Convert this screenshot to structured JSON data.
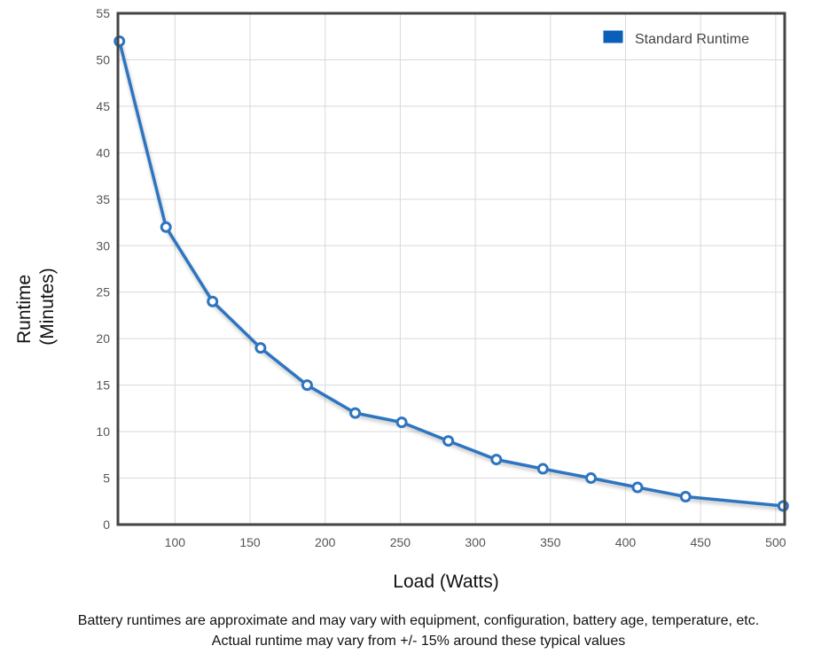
{
  "chart_data": {
    "type": "line",
    "title": "",
    "xlabel": "Load (Watts)",
    "ylabel": [
      "Runtime",
      "(Minutes)"
    ],
    "xlim": [
      62,
      506
    ],
    "ylim": [
      0,
      55
    ],
    "xticks": [
      100,
      150,
      200,
      250,
      300,
      350,
      400,
      450,
      500
    ],
    "yticks": [
      0,
      5,
      10,
      15,
      20,
      25,
      30,
      35,
      40,
      45,
      50,
      55
    ],
    "grid": true,
    "legend": "top-right",
    "series": [
      {
        "name": "Standard Runtime",
        "color": "#2e74bf",
        "x": [
          63,
          94,
          125,
          157,
          188,
          220,
          251,
          282,
          314,
          345,
          377,
          408,
          440,
          505
        ],
        "y": [
          52,
          32,
          24,
          19,
          15,
          12,
          11,
          9,
          7,
          6,
          5,
          4,
          3,
          2
        ]
      }
    ]
  },
  "footnotes": {
    "line1": "Battery runtimes are approximate and may vary with equipment, configuration, battery age, temperature, etc.",
    "line2": "Actual runtime may vary from +/- 15% around these typical values"
  },
  "colors": {
    "line": "#2e74bf",
    "legend_swatch": "#0a5fb8",
    "grid": "#d9d9d9",
    "frame": "#444444"
  }
}
